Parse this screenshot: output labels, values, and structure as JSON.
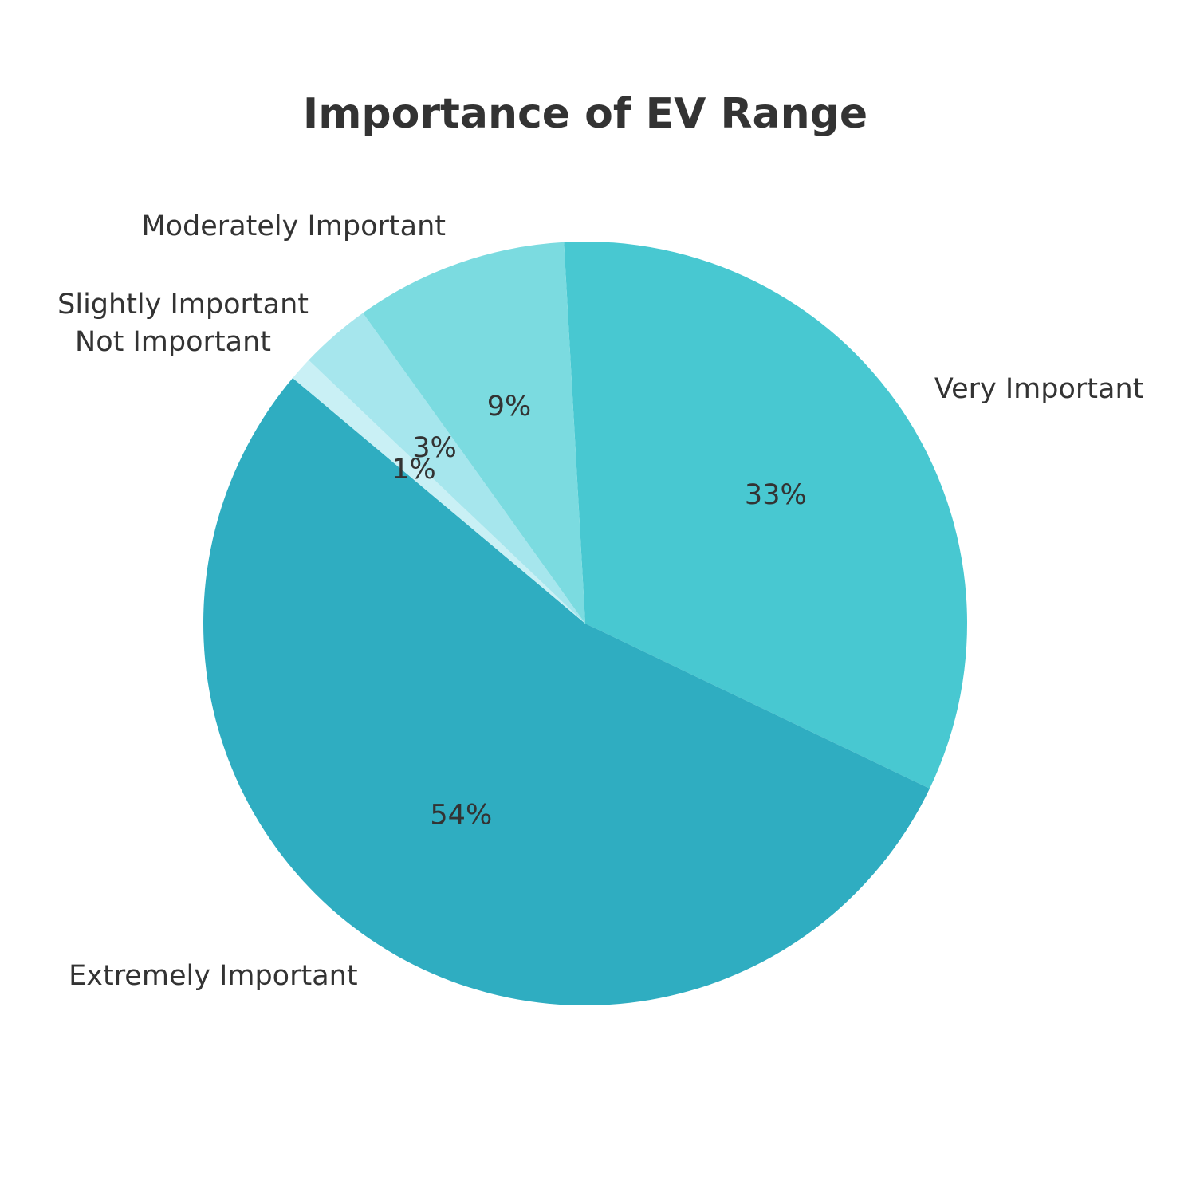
{
  "chart_data": {
    "type": "pie",
    "title": "Importance of EV Range",
    "categories": [
      "Very Important",
      "Extremely Important",
      "Not Important",
      "Slightly Important",
      "Moderately Important"
    ],
    "values": [
      33,
      54,
      1,
      3,
      9
    ],
    "value_labels": [
      "33%",
      "54%",
      "1%",
      "3%",
      "9%"
    ],
    "colors": [
      "#48C8D1",
      "#2FADC1",
      "#C9F0F5",
      "#A6E6ED",
      "#7BDBE0"
    ],
    "start_angle_deg": 93.2,
    "direction": "clockwise"
  }
}
